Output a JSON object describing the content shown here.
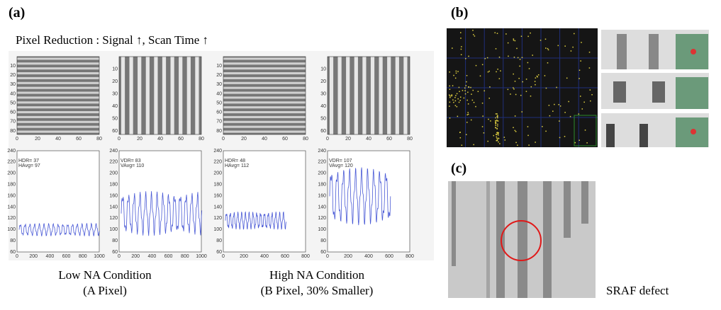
{
  "panel_a": {
    "label": "(a)",
    "subtitle": "Pixel Reduction : Signal ↑, Scan Time ↑",
    "image_plots": [
      {
        "yticks": [
          10,
          20,
          30,
          40,
          50,
          60,
          70,
          80
        ],
        "xticks": [
          0,
          20,
          40,
          60,
          80
        ]
      },
      {
        "yticks": [
          10,
          20,
          30,
          40,
          50,
          60
        ],
        "xticks": [
          0,
          20,
          40,
          60,
          80
        ]
      },
      {
        "yticks": [
          10,
          20,
          30,
          40,
          50,
          60,
          70,
          80
        ],
        "xticks": [
          0,
          20,
          40,
          60,
          80
        ]
      },
      {
        "yticks": [
          10,
          20,
          30,
          40,
          50,
          60
        ],
        "xticks": [
          0,
          20,
          40,
          60,
          80
        ]
      }
    ],
    "signal_plots": [
      {
        "annotation": [
          "HDR= 37",
          "HAvg= 97"
        ],
        "yticks": [
          60,
          80,
          100,
          120,
          140,
          160,
          180,
          200,
          220,
          240
        ],
        "xticks": [
          0,
          200,
          400,
          600,
          800,
          1000
        ]
      },
      {
        "annotation": [
          "VDR= 83",
          "VAvg= 110"
        ],
        "yticks": [
          60,
          80,
          100,
          120,
          140,
          160,
          180,
          200,
          220,
          240
        ],
        "xticks": [
          0,
          200,
          400,
          600,
          800,
          1000
        ]
      },
      {
        "annotation": [
          "HDR= 48",
          "HAvg= 112"
        ],
        "yticks": [
          60,
          80,
          100,
          120,
          140,
          160,
          180,
          200,
          220,
          240
        ],
        "xticks": [
          0,
          200,
          400,
          600,
          800
        ]
      },
      {
        "annotation": [
          "VDR= 107",
          "VAvg= 120"
        ],
        "yticks": [
          60,
          80,
          100,
          120,
          140,
          160,
          180,
          200,
          220,
          240
        ],
        "xticks": [
          0,
          200,
          400,
          600,
          800
        ]
      }
    ],
    "conditions": [
      {
        "title": "Low NA Condition",
        "detail": "(A Pixel)"
      },
      {
        "title": "High NA Condition",
        "detail": "(B Pixel, 30% Smaller)"
      }
    ]
  },
  "panel_b": {
    "label": "(b)"
  },
  "panel_c": {
    "label": "(c)",
    "caption": "SRAF defect"
  }
}
